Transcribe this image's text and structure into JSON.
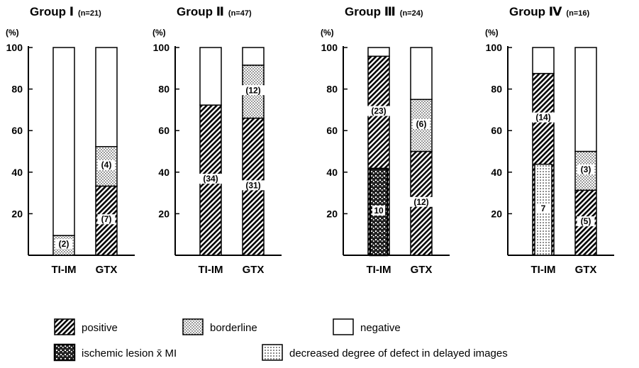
{
  "chart_data": {
    "type": "bar",
    "stacked": true,
    "ylim": [
      0,
      100
    ],
    "yticks": [
      20,
      40,
      60,
      80,
      100
    ],
    "categories": [
      "TI-IM",
      "GTX"
    ],
    "panels": [
      {
        "title": "Group Ⅰ",
        "n_label": "(n=21)",
        "unit": "(%)",
        "bars": [
          {
            "category": "TI-IM",
            "positive": 0,
            "borderline": 9.5,
            "negative": 90.5,
            "labels": {
              "borderline": "(2)"
            }
          },
          {
            "category": "GTX",
            "positive": 33.3,
            "borderline": 19.0,
            "negative": 47.7,
            "labels": {
              "positive": "(7)",
              "borderline": "(4)"
            }
          }
        ]
      },
      {
        "title": "Group Ⅱ",
        "n_label": "(n=47)",
        "unit": "(%)",
        "bars": [
          {
            "category": "TI-IM",
            "positive": 72.3,
            "borderline": 0,
            "negative": 27.7,
            "labels": {
              "positive": "(34)"
            }
          },
          {
            "category": "GTX",
            "positive": 66.0,
            "borderline": 25.5,
            "negative": 8.5,
            "labels": {
              "positive": "(31)",
              "borderline": "(12)"
            }
          }
        ]
      },
      {
        "title": "Group Ⅲ",
        "n_label": "(n=24)",
        "unit": "(%)",
        "bars": [
          {
            "category": "TI-IM",
            "positive": 95.8,
            "borderline": 0,
            "negative": 4.2,
            "labels": {
              "positive": "(23)"
            },
            "overlay": {
              "type": "ischemic",
              "value": 41.7,
              "label": "10"
            }
          },
          {
            "category": "GTX",
            "positive": 50.0,
            "borderline": 25.0,
            "negative": 25.0,
            "labels": {
              "positive": "(12)",
              "borderline": "(6)"
            }
          }
        ]
      },
      {
        "title": "Group Ⅳ",
        "n_label": "(n=16)",
        "unit": "(%)",
        "bars": [
          {
            "category": "TI-IM",
            "positive": 87.5,
            "borderline": 0,
            "negative": 12.5,
            "labels": {
              "positive": "(14)"
            },
            "overlay": {
              "type": "decreased",
              "value": 43.8,
              "label": "7"
            }
          },
          {
            "category": "GTX",
            "positive": 31.3,
            "borderline": 18.7,
            "negative": 50.0,
            "labels": {
              "positive": "(5)",
              "borderline": "(3)"
            }
          }
        ]
      }
    ],
    "legend": {
      "positive": "positive",
      "borderline": "borderline",
      "negative": "negative",
      "ischemic": "ischemic lesion x̄ MI",
      "decreased": "decreased degree of defect in delayed images"
    }
  }
}
